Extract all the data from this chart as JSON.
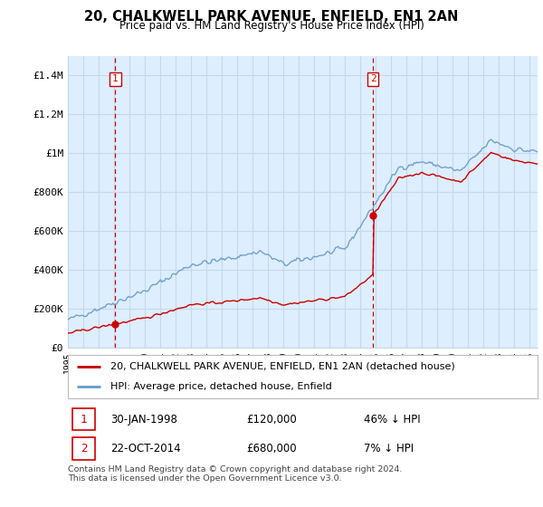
{
  "title": "20, CHALKWELL PARK AVENUE, ENFIELD, EN1 2AN",
  "subtitle": "Price paid vs. HM Land Registry's House Price Index (HPI)",
  "ylim": [
    0,
    1500000
  ],
  "yticks": [
    0,
    200000,
    400000,
    600000,
    800000,
    1000000,
    1200000,
    1400000
  ],
  "ytick_labels": [
    "£0",
    "£200K",
    "£400K",
    "£600K",
    "£800K",
    "£1M",
    "£1.2M",
    "£1.4M"
  ],
  "sale1_date_num": 1998.08,
  "sale1_price": 120000,
  "sale2_date_num": 2014.81,
  "sale2_price": 680000,
  "legend_sale_label": "20, CHALKWELL PARK AVENUE, ENFIELD, EN1 2AN (detached house)",
  "legend_hpi_label": "HPI: Average price, detached house, Enfield",
  "sale1_date_str": "30-JAN-1998",
  "sale1_price_str": "£120,000",
  "sale1_pct": "46% ↓ HPI",
  "sale2_date_str": "22-OCT-2014",
  "sale2_price_str": "£680,000",
  "sale2_pct": "7% ↓ HPI",
  "footer": "Contains HM Land Registry data © Crown copyright and database right 2024.\nThis data is licensed under the Open Government Licence v3.0.",
  "sale_color": "#cc0000",
  "hpi_color": "#6699cc",
  "vline_color": "#cc0000",
  "grid_color": "#c8d8e8",
  "bg_color": "#ddeeff",
  "plot_bg": "#ddeeff",
  "xlim_start": 1995.0,
  "xlim_end": 2025.5
}
